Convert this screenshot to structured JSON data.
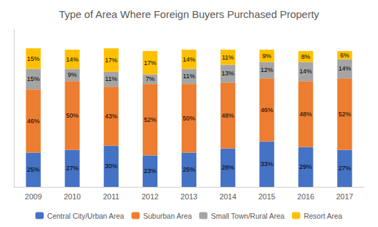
{
  "chart_data": {
    "type": "bar",
    "title": "Type of Area Where Foreign Buyers Purchased Property",
    "categories": [
      "2009",
      "2010",
      "2011",
      "2012",
      "2013",
      "2014",
      "2015",
      "2016",
      "2017"
    ],
    "series": [
      {
        "name": "Central City/Urban Area",
        "color": "#4472C4",
        "values": [
          25,
          27,
          30,
          23,
          25,
          28,
          33,
          29,
          27
        ],
        "value_labels": [
          "25%",
          "27%",
          "30%",
          "23%",
          "25%",
          "28%",
          "33%",
          "29%",
          "27%"
        ]
      },
      {
        "name": "Suburban Area",
        "color": "#ED7D31",
        "values": [
          46,
          50,
          43,
          52,
          50,
          48,
          46,
          48,
          52
        ],
        "value_labels": [
          "46%",
          "50%",
          "43%",
          "52%",
          "50%",
          "48%",
          "46%",
          "48%",
          "52%"
        ]
      },
      {
        "name": "Small Town/Rural Area",
        "color": "#A5A5A5",
        "values": [
          15,
          9,
          11,
          7,
          11,
          13,
          12,
          14,
          14
        ],
        "value_labels": [
          "15%",
          "9%",
          "11%",
          "7%",
          "11%",
          "13%",
          "12%",
          "14%",
          "14%"
        ]
      },
      {
        "name": "Resort Area",
        "color": "#FFC000",
        "values": [
          15,
          14,
          17,
          17,
          14,
          11,
          9,
          8,
          6
        ],
        "value_labels": [
          "15%",
          "14%",
          "17%",
          "17%",
          "14%",
          "11%",
          "9%",
          "8%",
          "6%"
        ]
      }
    ],
    "ylim": [
      0,
      115
    ],
    "yticks": [],
    "stacked": true,
    "data_labels": true,
    "tick_labels": "x",
    "grid": false,
    "legend": "bottom"
  }
}
